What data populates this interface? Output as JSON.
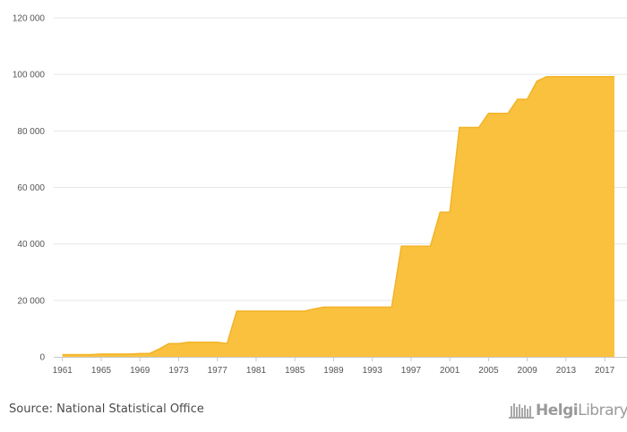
{
  "chart_data": {
    "type": "area",
    "x": [
      1961,
      1962,
      1963,
      1964,
      1965,
      1966,
      1967,
      1968,
      1969,
      1970,
      1971,
      1972,
      1973,
      1974,
      1975,
      1976,
      1977,
      1978,
      1979,
      1980,
      1981,
      1982,
      1983,
      1984,
      1985,
      1986,
      1987,
      1988,
      1989,
      1990,
      1991,
      1992,
      1993,
      1994,
      1995,
      1996,
      1997,
      1998,
      1999,
      2000,
      2001,
      2002,
      2003,
      2004,
      2005,
      2006,
      2007,
      2008,
      2009,
      2010,
      2011,
      2012,
      2013,
      2014,
      2015,
      2016,
      2017,
      2018
    ],
    "values": [
      800,
      800,
      800,
      800,
      1000,
      1000,
      1000,
      1000,
      1200,
      1200,
      2800,
      4700,
      4700,
      5200,
      5200,
      5200,
      5200,
      4700,
      16200,
      16200,
      16200,
      16200,
      16200,
      16200,
      16200,
      16200,
      17000,
      17600,
      17600,
      17600,
      17600,
      17600,
      17600,
      17600,
      17600,
      39200,
      39200,
      39200,
      39200,
      51200,
      51200,
      81200,
      81200,
      81200,
      86200,
      86200,
      86200,
      91200,
      91200,
      97600,
      99200,
      99200,
      99200,
      99200,
      99200,
      99200,
      99200,
      99200
    ],
    "xlabel": "",
    "ylabel": "",
    "ylim": [
      0,
      120000
    ],
    "y_ticks": [
      0,
      20000,
      40000,
      60000,
      80000,
      100000,
      120000
    ],
    "y_tick_labels": [
      "0",
      "20 000",
      "40 000",
      "60 000",
      "80 000",
      "100 000",
      "120 000"
    ],
    "x_ticks": [
      1961,
      1965,
      1969,
      1973,
      1977,
      1981,
      1985,
      1989,
      1993,
      1997,
      2001,
      2005,
      2009,
      2013,
      2017
    ],
    "x_tick_labels": [
      "1961",
      "1965",
      "1969",
      "1973",
      "1977",
      "1981",
      "1985",
      "1989",
      "1993",
      "1997",
      "2001",
      "2005",
      "2009",
      "2013",
      "2017"
    ],
    "grid": true,
    "fill_color": "#f9c13e",
    "line_color": "#f2b327"
  },
  "source": "Source: National Statistical Office",
  "brand": {
    "prefix": "Helgi",
    "suffix": "Library."
  }
}
